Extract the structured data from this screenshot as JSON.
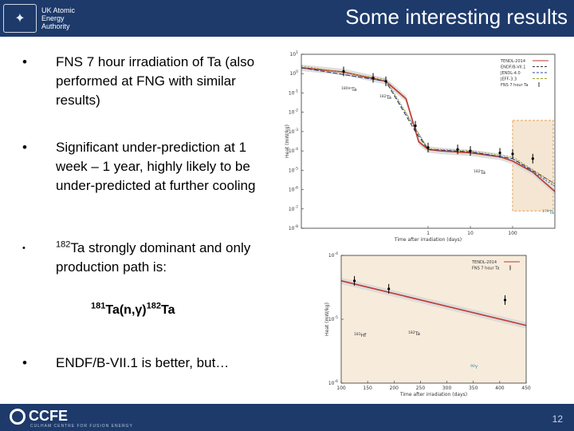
{
  "header": {
    "logo_text_lines": [
      "UK Atomic",
      "Energy",
      "Authority"
    ],
    "title": "Some interesting results"
  },
  "bullets": {
    "b1": {
      "marker": "•",
      "text": "FNS 7 hour irradiation of Ta (also performed at FNG with similar results)"
    },
    "b2": {
      "marker": "•",
      "text": "Significant under-prediction at 1 week – 1 year, highly likely to be under-predicted at further cooling"
    },
    "b3": {
      "marker": "•",
      "sup": "182",
      "text": "Ta strongly dominant and only production path is:"
    },
    "b4": {
      "marker": "•",
      "text": "ENDF/B-VII.1 is better, but…"
    }
  },
  "reaction": {
    "sup1": "181",
    "mid": "Ta(n,γ)",
    "sup2": "182",
    "end": "Ta"
  },
  "chart_data": [
    {
      "type": "line",
      "xlabel": "Time after irradiation (days)",
      "ylabel": "Heat (mW/kg)",
      "x_scale": "log",
      "y_scale": "log",
      "xlim": [
        0.001,
        1000
      ],
      "ylim": [
        1e-08,
        10.0
      ],
      "x_ticks": [
        "1",
        "10",
        "100"
      ],
      "y_ticks": [
        "10^1",
        "10^0",
        "10^-1",
        "10^-2",
        "10^-3",
        "10^-4",
        "10^-5",
        "10^-6",
        "10^-7",
        "10^-8"
      ],
      "legend_position": "top-right",
      "legend": [
        "TENDL-2014",
        "ENDF/B-VII.1",
        "JENDL-4.0",
        "JEFF-3.3",
        "FNS 7 hour Ta"
      ],
      "annotations": [
        "180mTa",
        "182Ta",
        "182Ta",
        "179Ta"
      ],
      "highlight_region_x": [
        100,
        1000
      ],
      "series": [
        {
          "name": "TENDL-2014",
          "color": "#c0392b",
          "x": [
            0.001,
            0.01,
            0.1,
            0.3,
            0.6,
            1,
            2,
            10,
            50,
            100,
            300,
            1000
          ],
          "y": [
            2,
            1.2,
            0.4,
            0.05,
            0.0003,
            0.00012,
            0.0001,
            8e-05,
            5e-05,
            3e-05,
            8e-06,
            8e-07
          ]
        },
        {
          "name": "ENDF/B-VII.1",
          "color": "#333333",
          "x": [
            0.001,
            0.1,
            0.5,
            1,
            10,
            100,
            1000
          ],
          "y": [
            2,
            0.4,
            0.001,
            0.00012,
            9e-05,
            4e-05,
            2e-06
          ]
        },
        {
          "name": "JENDL-4.0",
          "color": "#2f4aa8",
          "x": [
            0.001,
            0.1,
            1,
            10,
            100,
            1000
          ],
          "y": [
            2,
            0.4,
            0.00012,
            9e-05,
            4e-05,
            1.5e-06
          ]
        },
        {
          "name": "JEFF-3.3",
          "color": "#9aa02a",
          "x": [
            0.001,
            0.1,
            1,
            10,
            100,
            1000
          ],
          "y": [
            2.5,
            0.5,
            0.00013,
            0.0001,
            5e-05,
            2e-06
          ]
        },
        {
          "name": "FNS 7 hour Ta",
          "color": "#000000",
          "points": true,
          "x": [
            0.01,
            0.05,
            0.1,
            0.5,
            1,
            5,
            10,
            50,
            100,
            300
          ],
          "y": [
            1.3,
            0.6,
            0.4,
            0.002,
            0.00015,
            0.00012,
            0.0001,
            8e-05,
            7e-05,
            4e-05
          ]
        }
      ]
    },
    {
      "type": "line",
      "xlabel": "Time after irradiation (days)",
      "ylabel": "Heat (mW/kg)",
      "y_scale": "log",
      "xlim": [
        100,
        450
      ],
      "ylim": [
        1e-06,
        0.0001
      ],
      "x_ticks": [
        "100",
        "150",
        "200",
        "250",
        "300",
        "350",
        "400",
        "450"
      ],
      "y_ticks": [
        "10^-4",
        "10^-5",
        "10^-6"
      ],
      "legend_position": "top-right",
      "legend": [
        "TENDL-2014",
        "FNS 7 hour Ta"
      ],
      "annotations": [
        "181Hf",
        "182Ta",
        "90Y"
      ],
      "series": [
        {
          "name": "TENDL-2014",
          "color": "#c0392b",
          "x": [
            100,
            450
          ],
          "y": [
            4e-05,
            8e-06
          ]
        },
        {
          "name": "FNS 7 hour Ta",
          "color": "#000000",
          "points": true,
          "x": [
            125,
            190,
            410
          ],
          "y": [
            4e-05,
            3e-05,
            2e-05
          ]
        }
      ]
    }
  ],
  "footer": {
    "logo_text": "CCFE",
    "logo_sub": "CULHAM CENTRE FOR FUSION ENERGY",
    "page_number": "12"
  },
  "colors": {
    "brand_navy": "#1d3a6b",
    "highlight_fill": "#f5e6d3",
    "band_fill": "#d9d9d9"
  }
}
